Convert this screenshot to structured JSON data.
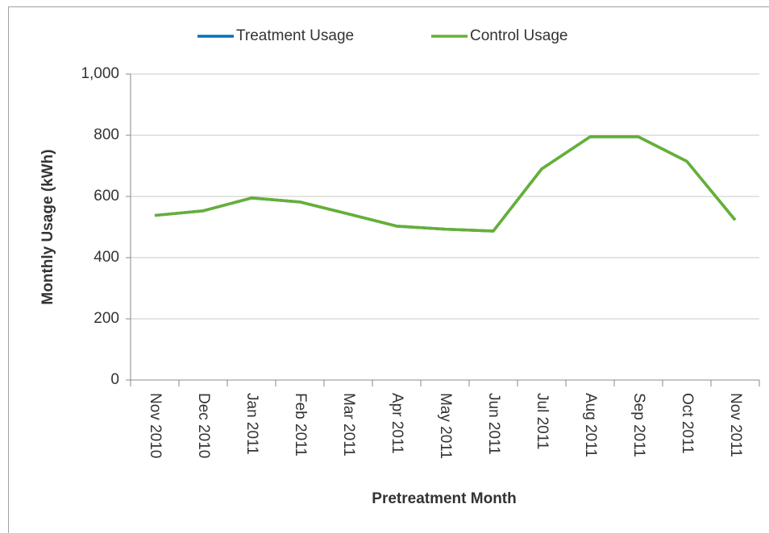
{
  "chart_data": {
    "type": "line",
    "x_label": "Pretreatment Month",
    "y_label": "Monthly Usage (kWh)",
    "categories": [
      "Nov 2010",
      "Dec 2010",
      "Jan 2011",
      "Feb 2011",
      "Mar 2011",
      "Apr 2011",
      "May 2011",
      "Jun 2011",
      "Jul 2011",
      "Aug 2011",
      "Sep 2011",
      "Oct 2011",
      "Nov 2011"
    ],
    "series": [
      {
        "name": "Treatment Usage",
        "color": "#0070c0",
        "values": [
          538,
          553,
          595,
          582,
          543,
          503,
          493,
          487,
          690,
          795,
          795,
          715,
          523
        ]
      },
      {
        "name": "Control Usage",
        "color": "#66b032",
        "values": [
          538,
          553,
          595,
          582,
          543,
          503,
          493,
          487,
          690,
          795,
          795,
          715,
          523
        ]
      }
    ],
    "ylim": [
      0,
      1000
    ],
    "yticks": [
      0,
      200,
      400,
      600,
      800,
      {
        "value": 1000,
        "label": "1,000"
      }
    ],
    "grid": true,
    "legend": "top"
  }
}
